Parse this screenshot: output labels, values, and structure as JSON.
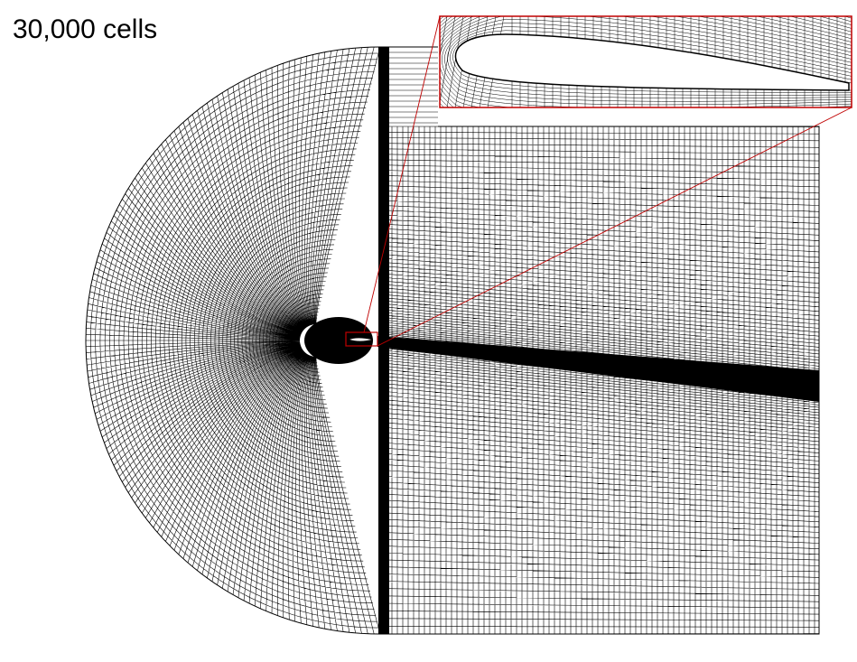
{
  "figure": {
    "label": "30,000 cells",
    "colors": {
      "mesh_line": "#000000",
      "highlight": "#c00000",
      "background": "#ffffff"
    }
  }
}
